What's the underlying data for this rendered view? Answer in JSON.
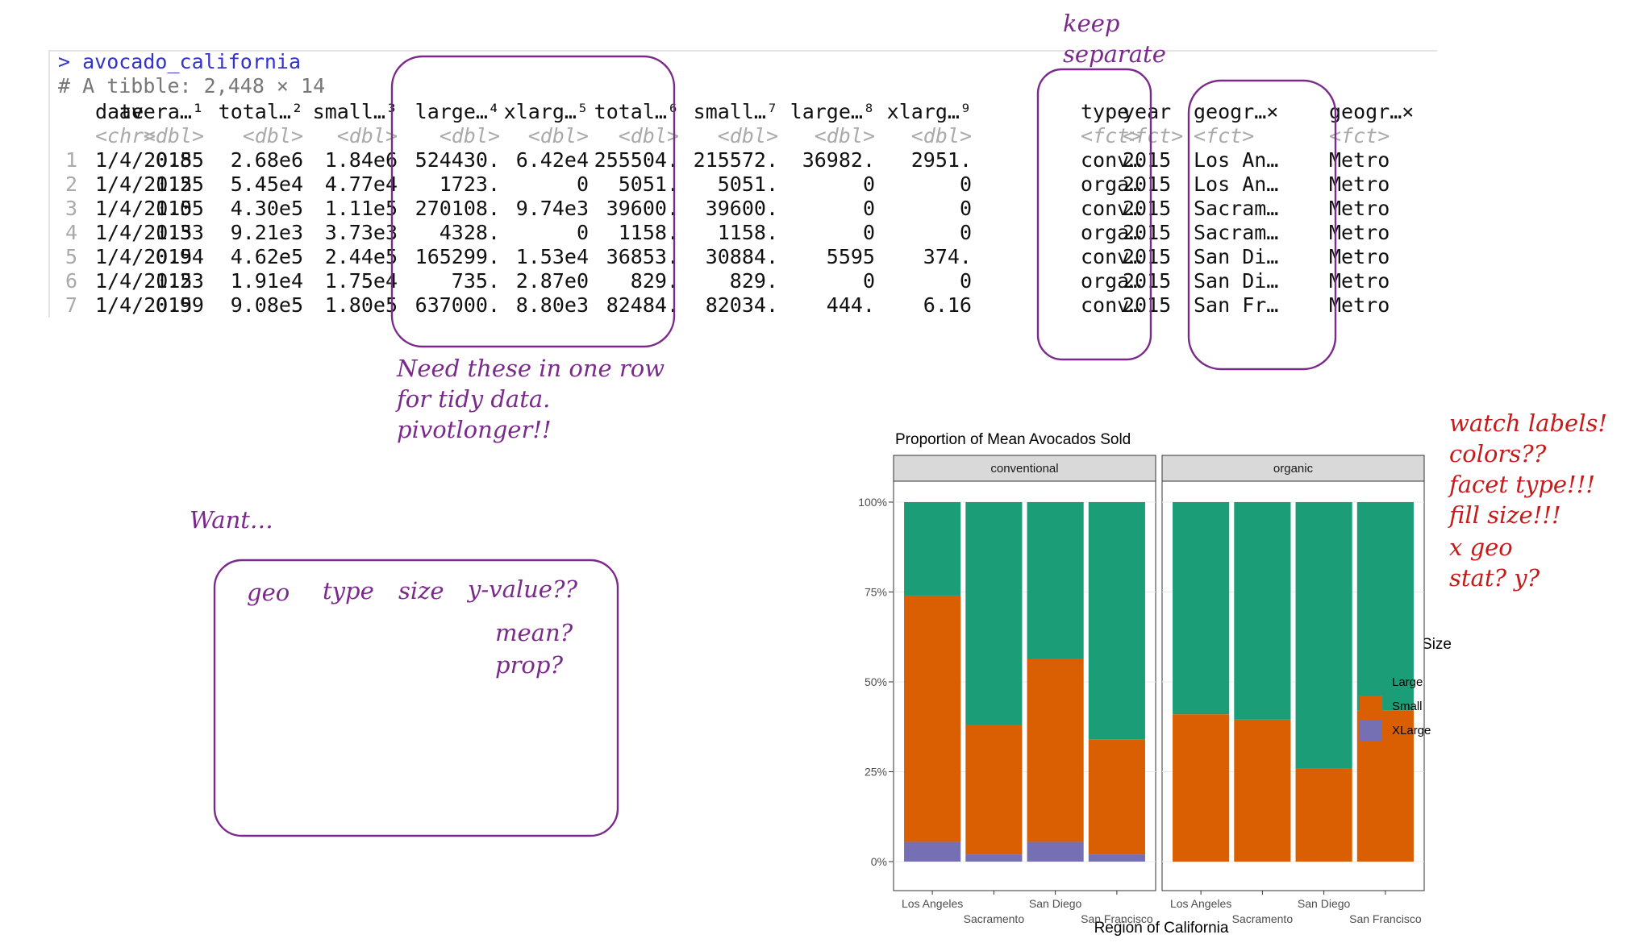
{
  "console": {
    "prompt": "> avocado_california",
    "comment": "# A tibble: 2,448 × 14",
    "headers": [
      "date",
      "avera…¹",
      "total…²",
      "small…³",
      "large…⁴",
      "xlarg…⁵",
      "total…⁶",
      "small…⁷",
      "large…⁸",
      "xlarg…⁹",
      "type",
      "year",
      "geogr…×",
      "geogr…×"
    ],
    "types": [
      "<chr>",
      "<dbl>",
      "<dbl>",
      "<dbl>",
      "<dbl>",
      "<dbl>",
      "<dbl>",
      "<dbl>",
      "<dbl>",
      "<dbl>",
      "<fct>",
      "<fct>",
      "<fct>",
      "<fct>"
    ],
    "rows": [
      [
        "1",
        "1/4/2015",
        "0.85",
        "2.68e6",
        "1.84e6",
        "524430.",
        "6.42e4",
        "255504.",
        "215572.",
        "36982.",
        "2951.",
        "conv…",
        "2015",
        "Los An…",
        "Metro"
      ],
      [
        "2",
        "1/4/2015",
        "1.25",
        "5.45e4",
        "4.77e4",
        "1723.",
        "0",
        "5051.",
        "5051.",
        "0",
        "0",
        "orga…",
        "2015",
        "Los An…",
        "Metro"
      ],
      [
        "3",
        "1/4/2015",
        "1.05",
        "4.30e5",
        "1.11e5",
        "270108.",
        "9.74e3",
        "39600.",
        "39600.",
        "0",
        "0",
        "conv…",
        "2015",
        "Sacram…",
        "Metro"
      ],
      [
        "4",
        "1/4/2015",
        "1.33",
        "9.21e3",
        "3.73e3",
        "4328.",
        "0",
        "1158.",
        "1158.",
        "0",
        "0",
        "orga…",
        "2015",
        "Sacram…",
        "Metro"
      ],
      [
        "5",
        "1/4/2015",
        "0.94",
        "4.62e5",
        "2.44e5",
        "165299.",
        "1.53e4",
        "36853.",
        "30884.",
        "5595",
        "374.",
        "conv…",
        "2015",
        "San Di…",
        "Metro"
      ],
      [
        "6",
        "1/4/2015",
        "1.23",
        "1.91e4",
        "1.75e4",
        "735.",
        "2.87e0",
        "829.",
        "829.",
        "0",
        "0",
        "orga…",
        "2015",
        "San Di…",
        "Metro"
      ],
      [
        "7",
        "1/4/2015",
        "0.99",
        "9.08e5",
        "1.80e5",
        "637000.",
        "8.80e3",
        "82484.",
        "82034.",
        "444.",
        "6.16",
        "conv…",
        "2015",
        "San Fr…",
        "Metro"
      ]
    ]
  },
  "annotations": {
    "keep_separate": [
      "keep",
      "separate"
    ],
    "need_rows": [
      "Need these in one row",
      "for tidy data.",
      "pivotlonger!!"
    ],
    "want": "Want…",
    "box_cols": [
      "geo",
      "type",
      "size",
      "y-value??"
    ],
    "box_notes": [
      "mean?",
      "prop?"
    ],
    "red_notes": [
      "watch labels!",
      "colors??",
      "facet type!!!",
      "fill size!!!",
      "x geo",
      "stat? y?"
    ]
  },
  "colors": {
    "Large": "#1b9e77",
    "Small": "#d95f02",
    "XLarge": "#7570b3",
    "ink": "#7a2a8a",
    "red_ink": "#c41b1b"
  },
  "chart_data": {
    "type": "bar",
    "stacked": "proportion",
    "title": "Proportion of Mean Avocados Sold",
    "xlabel": "Region of California",
    "ylabel": "",
    "ylim": [
      0,
      1
    ],
    "yticks": [
      "0%",
      "25%",
      "50%",
      "75%",
      "100%"
    ],
    "categories": [
      "Los Angeles",
      "Sacramento",
      "San Diego",
      "San Francisco"
    ],
    "facets": [
      {
        "name": "conventional",
        "series": [
          {
            "name": "Large",
            "values": [
              0.26,
              0.62,
              0.435,
              0.66
            ]
          },
          {
            "name": "Small",
            "values": [
              0.685,
              0.36,
              0.51,
              0.32
            ]
          },
          {
            "name": "XLarge",
            "values": [
              0.055,
              0.02,
              0.055,
              0.02
            ]
          }
        ]
      },
      {
        "name": "organic",
        "series": [
          {
            "name": "Large",
            "values": [
              0.59,
              0.605,
              0.74,
              0.58
            ]
          },
          {
            "name": "Small",
            "values": [
              0.41,
              0.395,
              0.26,
              0.42
            ]
          },
          {
            "name": "XLarge",
            "values": [
              0,
              0,
              0,
              0
            ]
          }
        ]
      }
    ],
    "legend": {
      "title": "Avocado Size",
      "position": "right"
    },
    "grid": true
  }
}
